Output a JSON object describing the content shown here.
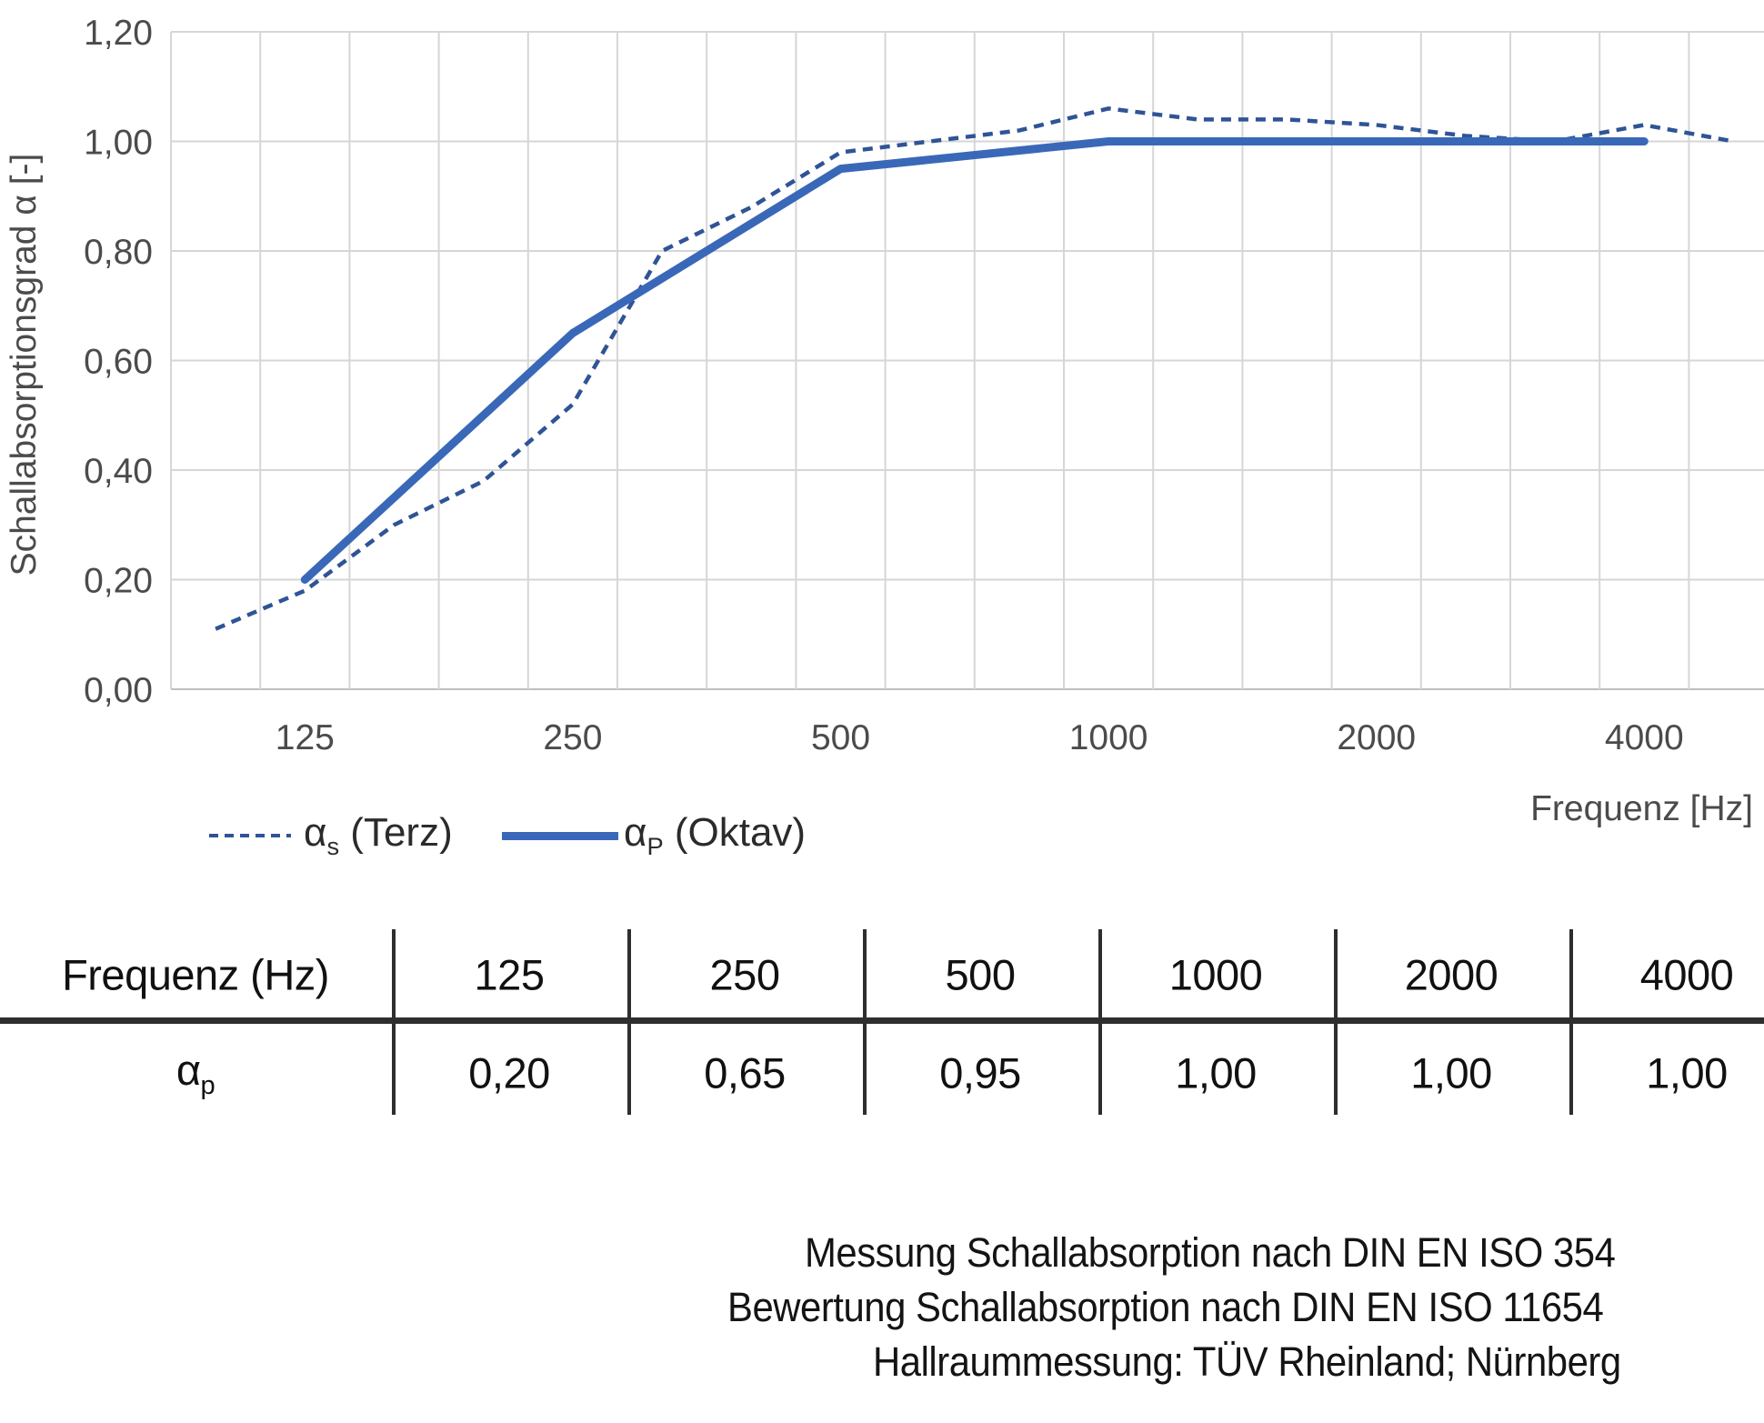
{
  "chart": {
    "y_axis": {
      "title": "Schallabsorptionsgrad α [-]",
      "tick_labels": [
        "1,20",
        "1,00",
        "0,80",
        "0,60",
        "0,40",
        "0,20",
        "0,00"
      ]
    },
    "x_axis": {
      "title": "Frequenz [Hz]",
      "tick_labels": [
        "125",
        "250",
        "500",
        "1000",
        "2000",
        "4000"
      ],
      "tick_category_indices": [
        1,
        4,
        7,
        10,
        13,
        16
      ]
    },
    "legend": [
      {
        "symbol": "α",
        "sub": "s",
        "rest": " (Terz)",
        "style": "dashed"
      },
      {
        "symbol": "α",
        "sub": "P",
        "rest": " (Oktav)",
        "style": "solid"
      }
    ]
  },
  "chart_data": {
    "type": "line",
    "x_scale": "log-third-octave-categories",
    "categories": [
      100,
      125,
      160,
      200,
      250,
      315,
      400,
      500,
      630,
      800,
      1000,
      1250,
      1600,
      2000,
      2500,
      3150,
      4000,
      5000
    ],
    "series": [
      {
        "name": "αs (Terz)",
        "style": "dashed",
        "color": "#2f5496",
        "frequencies": [
          100,
          125,
          160,
          200,
          250,
          315,
          400,
          500,
          630,
          800,
          1000,
          1250,
          1600,
          2000,
          2500,
          3150,
          4000,
          5000
        ],
        "values": [
          0.11,
          0.18,
          0.3,
          0.38,
          0.52,
          0.8,
          0.88,
          0.98,
          1.0,
          1.02,
          1.06,
          1.04,
          1.04,
          1.03,
          1.01,
          1.0,
          1.03,
          1.0
        ]
      },
      {
        "name": "αP (Oktav)",
        "style": "solid",
        "color": "#3a68b8",
        "frequencies": [
          125,
          250,
          500,
          1000,
          2000,
          4000
        ],
        "values": [
          0.2,
          0.65,
          0.95,
          1.0,
          1.0,
          1.0
        ]
      }
    ],
    "ylim": [
      0,
      1.2
    ],
    "y_step": 0.2,
    "grid": true,
    "legend_position": "bottom-left",
    "colors": {
      "grid": "#d6d6d6",
      "axis_line": "#bfbfbf",
      "tick_text": "#4b4b4b"
    }
  },
  "table": {
    "header": [
      "Frequenz (Hz)",
      "125",
      "250",
      "500",
      "1000",
      "2000",
      "4000"
    ],
    "row_label": {
      "symbol": "α",
      "sub": "p"
    },
    "values": [
      "0,20",
      "0,65",
      "0,95",
      "1,00",
      "1,00",
      "1,00"
    ]
  },
  "footer": {
    "lines": [
      "Messung Schallabsorption nach DIN EN ISO 354",
      "Bewertung Schallabsorption nach DIN EN ISO 11654",
      "Hallraummessung: TÜV Rheinland; Nürnberg"
    ]
  }
}
